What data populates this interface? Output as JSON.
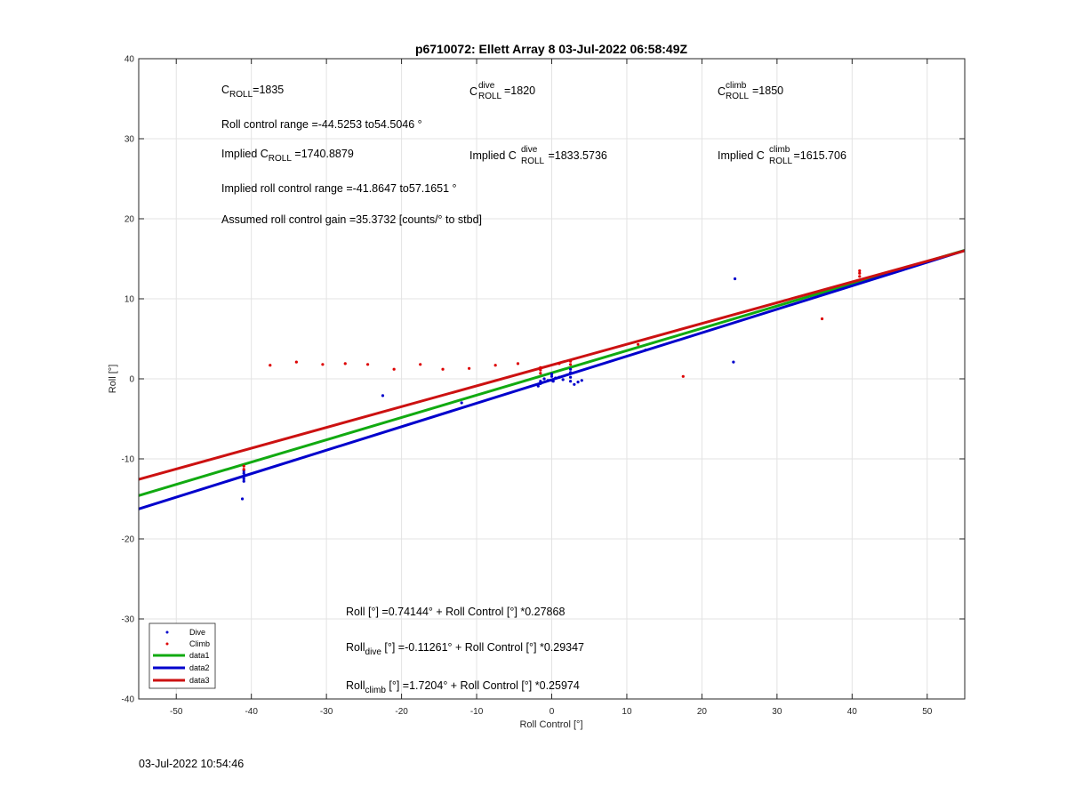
{
  "chart_data": {
    "type": "scatter",
    "title": "p6710072: Ellett Array 8 03-Jul-2022 06:58:49Z",
    "xlabel": "Roll Control [°]",
    "ylabel": "Roll [°]",
    "xlim": [
      -55,
      55
    ],
    "ylim": [
      -40,
      40
    ],
    "xticks": [
      -50,
      -40,
      -30,
      -20,
      -10,
      0,
      10,
      20,
      30,
      40,
      50
    ],
    "yticks": [
      -40,
      -30,
      -20,
      -10,
      0,
      10,
      20,
      30,
      40
    ],
    "grid": true,
    "legend_position": "bottom-left",
    "series": [
      {
        "name": "Dive",
        "kind": "points",
        "color": "#0000cc",
        "x": [
          -41,
          -41,
          -41,
          -41,
          -41,
          -41.2,
          -22.5,
          -12,
          -1.5,
          -1.5,
          -1.8,
          -1,
          -0.5,
          0,
          0,
          0,
          0.2,
          0.5,
          1,
          1.5,
          2.5,
          2.5,
          2.5,
          2.5,
          3,
          3.5,
          4,
          12.5,
          24.2,
          24.4
        ],
        "y": [
          -11.8,
          -12.2,
          -12.5,
          -11.5,
          -12.8,
          -15,
          -2.1,
          -3,
          -0.3,
          -0.6,
          -0.9,
          0,
          -0.2,
          0.3,
          -0.2,
          0.6,
          -0.3,
          0.1,
          0.2,
          -0.1,
          0.2,
          0.8,
          1.2,
          -0.3,
          -0.7,
          -0.4,
          -0.2,
          3.6,
          2.1,
          12.5
        ]
      },
      {
        "name": "Climb",
        "kind": "points",
        "color": "#dd0000",
        "x": [
          -41,
          -41,
          -37.5,
          -34,
          -30.5,
          -27.5,
          -24.5,
          -21,
          -17.5,
          -14.5,
          -11,
          -7.5,
          -4.5,
          -1.5,
          -1.5,
          -1.5,
          1,
          2.5,
          2.5,
          11.5,
          17.5,
          36,
          41,
          41,
          41
        ],
        "y": [
          -10.9,
          -11.3,
          1.7,
          2.1,
          1.8,
          1.9,
          1.8,
          1.2,
          1.8,
          1.2,
          1.3,
          1.7,
          1.9,
          0.7,
          1.1,
          1.4,
          1.9,
          1.8,
          2.2,
          4.3,
          0.3,
          7.5,
          12.8,
          13.2,
          13.5
        ]
      },
      {
        "name": "data1",
        "kind": "line",
        "color": "#11aa11",
        "intercept": 0.74144,
        "slope": 0.27868
      },
      {
        "name": "data2",
        "kind": "line",
        "color": "#0000cc",
        "intercept": -0.11261,
        "slope": 0.29347
      },
      {
        "name": "data3",
        "kind": "line",
        "color": "#cc1111",
        "intercept": 1.7204,
        "slope": 0.25974
      }
    ]
  },
  "annotations": {
    "c_roll_base": "C",
    "c_roll_sub": "ROLL",
    "c_roll_value": "=1835",
    "c_dive_base": "C",
    "c_dive_sup": "dive",
    "c_dive_sub": "ROLL",
    "c_dive_value": "=1820",
    "c_climb_base": "C",
    "c_climb_sup": "climb",
    "c_climb_sub": "ROLL",
    "c_climb_value": "=1850",
    "roll_range": "Roll control range =-44.5253 to54.5046 °",
    "implied_prefix": "Implied C",
    "implied_sub": "ROLL",
    "implied_value": " =1740.8879",
    "implied_dive_prefix": "Implied C",
    "implied_dive_sup": "dive",
    "implied_dive_sub": "ROLL",
    "implied_dive_value": " =1833.5736",
    "implied_climb_prefix": "Implied C",
    "implied_climb_sup": "climb",
    "implied_climb_sub": "ROLL",
    "implied_climb_value": " =1615.706",
    "implied_range": "Implied roll control range =-41.8647 to57.1651 °",
    "assumed_gain": "Assumed roll control gain =35.3732 [counts/° to stbd]",
    "fit_all": "Roll [°] =0.74144° + Roll Control [°] *0.27868",
    "fit_dive_base": "Roll",
    "fit_dive_sub": "dive",
    "fit_dive_rest": " [°] =-0.11261° + Roll Control [°] *0.29347",
    "fit_climb_base": "Roll",
    "fit_climb_sub": "climb",
    "fit_climb_rest": " [°] =1.7204° + Roll Control [°] *0.25974"
  },
  "footer": {
    "timestamp": "03-Jul-2022 10:54:46"
  }
}
